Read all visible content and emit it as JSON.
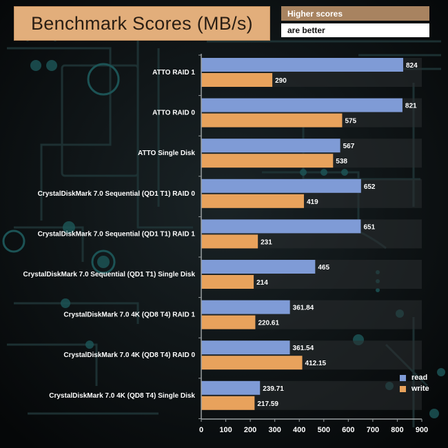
{
  "header": {
    "title": "Benchmark Scores (MB/s)",
    "note_line1": "Higher scores",
    "note_line2": "are better"
  },
  "colors": {
    "read": "#7f9bd6",
    "write": "#e8a25c",
    "title_bg": "#e2ae7b",
    "note_bg": "#a88360"
  },
  "chart_data": {
    "type": "bar",
    "orientation": "horizontal",
    "title": "Benchmark Scores (MB/s)",
    "xlabel": "",
    "ylabel": "",
    "xlim": [
      0,
      900
    ],
    "xticks": [
      0,
      100,
      200,
      300,
      400,
      500,
      600,
      700,
      800,
      900
    ],
    "legend_position": "bottom-right",
    "categories": [
      "ATTO RAID 1",
      "ATTO RAID 0",
      "ATTO Single Disk",
      "CrystalDiskMark 7.0 Sequential (QD1 T1) RAID 0",
      "CrystalDiskMark 7.0 Sequential (QD1 T1) RAID 1",
      "CrystalDiskMark 7.0 Sequential (QD1 T1) Single Disk",
      "CrystalDiskMark 7.0 4K (QD8 T4) RAID 1",
      "CrystalDiskMark 7.0 4K (QD8 T4) RAID 0",
      "CrystalDiskMark 7.0 4K (QD8 T4) Single Disk"
    ],
    "series": [
      {
        "name": "read",
        "values": [
          824,
          821,
          567,
          652,
          651,
          465,
          361.84,
          361.54,
          239.71
        ],
        "labels": [
          "824",
          "821",
          "567",
          "652",
          "651",
          "465",
          "361.84",
          "361.54",
          "239.71"
        ]
      },
      {
        "name": "write",
        "values": [
          290,
          575,
          538,
          419,
          231,
          214,
          220.61,
          412.15,
          217.59
        ],
        "labels": [
          "290",
          "575",
          "538",
          "419",
          "231",
          "214",
          "220.61",
          "412.15",
          "217.59"
        ]
      }
    ]
  }
}
